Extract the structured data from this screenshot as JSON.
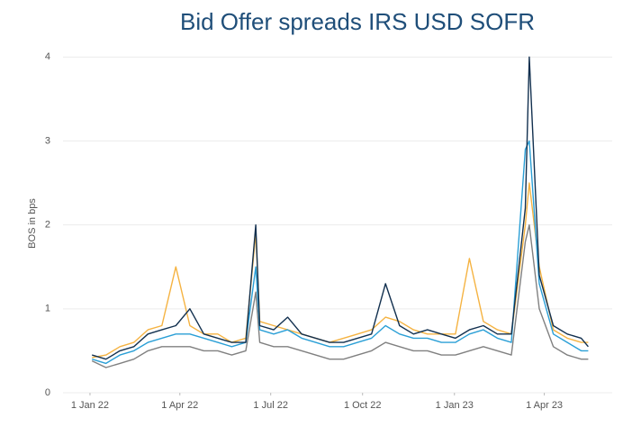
{
  "chart_data": {
    "type": "line",
    "title": "Bid Offer spreads IRS USD SOFR",
    "y_label": "BOS in bps",
    "x": [
      "2022-01-03",
      "2022-01-17",
      "2022-01-31",
      "2022-02-14",
      "2022-02-28",
      "2022-03-14",
      "2022-03-28",
      "2022-04-11",
      "2022-04-25",
      "2022-05-09",
      "2022-05-23",
      "2022-06-06",
      "2022-06-16",
      "2022-06-20",
      "2022-07-04",
      "2022-07-18",
      "2022-08-01",
      "2022-08-15",
      "2022-08-29",
      "2022-09-12",
      "2022-09-26",
      "2022-10-10",
      "2022-10-24",
      "2022-11-07",
      "2022-11-21",
      "2022-12-05",
      "2022-12-19",
      "2023-01-02",
      "2023-01-16",
      "2023-01-30",
      "2023-02-13",
      "2023-02-27",
      "2023-03-13",
      "2023-03-17",
      "2023-03-27",
      "2023-04-10",
      "2023-04-24",
      "2023-05-08",
      "2023-05-15"
    ],
    "series": [
      {
        "color": "#808080",
        "values": [
          0.38,
          0.3,
          0.35,
          0.4,
          0.5,
          0.55,
          0.55,
          0.55,
          0.5,
          0.5,
          0.45,
          0.5,
          1.2,
          0.6,
          0.55,
          0.55,
          0.5,
          0.45,
          0.4,
          0.4,
          0.45,
          0.5,
          0.6,
          0.55,
          0.5,
          0.5,
          0.45,
          0.45,
          0.5,
          0.55,
          0.5,
          0.45,
          1.8,
          2.0,
          1.0,
          0.55,
          0.45,
          0.4,
          0.4
        ]
      },
      {
        "color": "#f5b342",
        "values": [
          0.42,
          0.45,
          0.55,
          0.6,
          0.75,
          0.8,
          1.5,
          0.8,
          0.7,
          0.7,
          0.6,
          0.65,
          1.9,
          0.85,
          0.8,
          0.75,
          0.7,
          0.65,
          0.6,
          0.65,
          0.7,
          0.75,
          0.9,
          0.85,
          0.75,
          0.7,
          0.7,
          0.7,
          1.6,
          0.85,
          0.75,
          0.7,
          2.0,
          2.5,
          1.5,
          0.75,
          0.65,
          0.6,
          0.6
        ]
      },
      {
        "color": "#2a9fd6",
        "values": [
          0.4,
          0.35,
          0.45,
          0.5,
          0.6,
          0.65,
          0.7,
          0.7,
          0.65,
          0.6,
          0.55,
          0.6,
          1.5,
          0.75,
          0.7,
          0.75,
          0.65,
          0.6,
          0.55,
          0.55,
          0.6,
          0.65,
          0.8,
          0.7,
          0.65,
          0.65,
          0.6,
          0.6,
          0.7,
          0.75,
          0.65,
          0.6,
          2.9,
          3.0,
          1.3,
          0.7,
          0.6,
          0.5,
          0.5
        ]
      },
      {
        "color": "#12304f",
        "values": [
          0.45,
          0.4,
          0.5,
          0.55,
          0.7,
          0.75,
          0.8,
          1.0,
          0.7,
          0.65,
          0.6,
          0.6,
          2.0,
          0.8,
          0.75,
          0.9,
          0.7,
          0.65,
          0.6,
          0.6,
          0.65,
          0.7,
          1.3,
          0.8,
          0.7,
          0.75,
          0.7,
          0.65,
          0.75,
          0.8,
          0.7,
          0.7,
          2.2,
          4.0,
          1.4,
          0.8,
          0.7,
          0.65,
          0.55
        ]
      }
    ],
    "xlim": [
      "2021-12-05",
      "2023-06-08"
    ],
    "xticks": [
      {
        "value": "2022-01-01",
        "label": "1 Jan 22"
      },
      {
        "value": "2022-04-01",
        "label": "1 Apr 22"
      },
      {
        "value": "2022-07-01",
        "label": "1 Jul 22"
      },
      {
        "value": "2022-10-01",
        "label": "1 Oct 22"
      },
      {
        "value": "2023-01-01",
        "label": "1 Jan 23"
      },
      {
        "value": "2023-04-01",
        "label": "1 Apr 23"
      }
    ],
    "ylim": [
      0,
      4.1
    ],
    "yticks": [
      0,
      1,
      2,
      3,
      4
    ],
    "grid": true
  }
}
